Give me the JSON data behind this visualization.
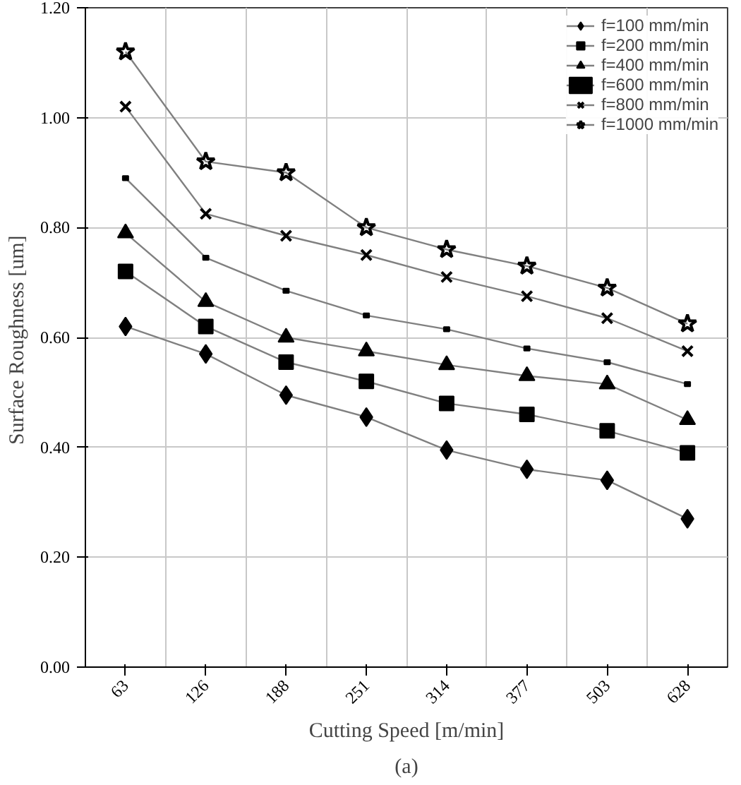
{
  "chart_data": {
    "type": "line",
    "xlabel": "Cutting Speed [m/min]",
    "ylabel": "Surface Roughness  [um]",
    "categories": [
      "63",
      "126",
      "188",
      "251",
      "314",
      "377",
      "503",
      "628"
    ],
    "series": [
      {
        "name": "f=100 mm/min",
        "color": "#000000",
        "marker": "diamond",
        "values": [
          0.62,
          0.57,
          0.495,
          0.455,
          0.395,
          0.36,
          0.34,
          0.27
        ]
      },
      {
        "name": "f=200 mm/min",
        "color": "#000000",
        "marker": "square",
        "values": [
          0.72,
          0.62,
          0.555,
          0.52,
          0.48,
          0.46,
          0.43,
          0.39
        ]
      },
      {
        "name": "f=400 mm/min",
        "color": "#000000",
        "marker": "triangle",
        "values": [
          0.79,
          0.665,
          0.6,
          0.575,
          0.55,
          0.53,
          0.515,
          0.45
        ]
      },
      {
        "name": "f=600 mm/min",
        "color": "#000000",
        "marker": "square",
        "values": [
          0.89,
          0.745,
          0.685,
          0.64,
          0.615,
          0.58,
          0.555,
          0.515
        ]
      },
      {
        "name": "f=800 mm/min",
        "color": "#000000",
        "marker": "cross",
        "values": [
          1.02,
          0.825,
          0.785,
          0.75,
          0.71,
          0.675,
          0.635,
          0.575
        ]
      },
      {
        "name": "f=1000 mm/min",
        "color": "#000000",
        "marker": "star",
        "values": [
          1.12,
          0.92,
          0.9,
          0.8,
          0.76,
          0.73,
          0.69,
          0.625
        ]
      }
    ],
    "ylim": [
      0,
      1.2
    ],
    "yticks": [
      {
        "value": 0,
        "label": "0.00"
      },
      {
        "value": 0.2,
        "label": "0.20"
      },
      {
        "value": 0.4,
        "label": "0.40"
      },
      {
        "value": 0.6,
        "label": "0.60"
      },
      {
        "value": 0.8,
        "label": "0.80"
      },
      {
        "value": 1.0,
        "label": "1.00"
      },
      {
        "value": 1.2,
        "label": "1.20"
      }
    ],
    "grid": true,
    "legend": "top right",
    "line_style": "solid",
    "annotations": [
      "(a)"
    ]
  }
}
